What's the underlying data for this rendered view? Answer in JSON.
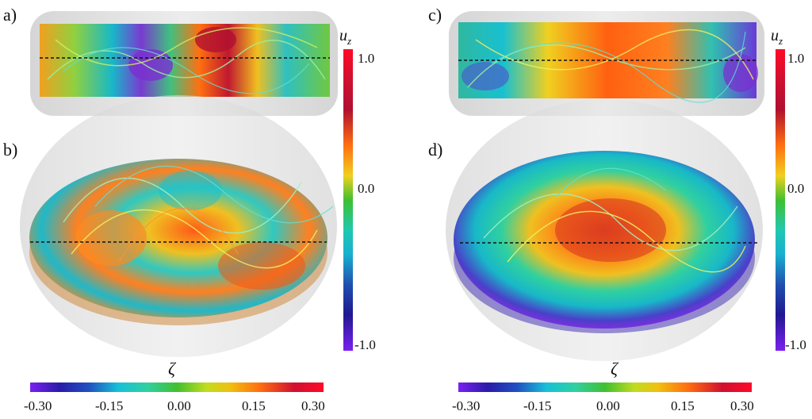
{
  "panels": {
    "a": "a)",
    "b": "b)",
    "c": "c)",
    "d": "d)"
  },
  "vertical_colorbar": {
    "title_main": "u",
    "title_sub": "z",
    "ticks": [
      "1.0",
      "0.0",
      "-1.0"
    ]
  },
  "horizontal_colorbar": {
    "title": "ζ",
    "ticks": [
      "-0.30",
      "-0.15",
      "0.00",
      "0.15",
      "0.30"
    ]
  }
}
